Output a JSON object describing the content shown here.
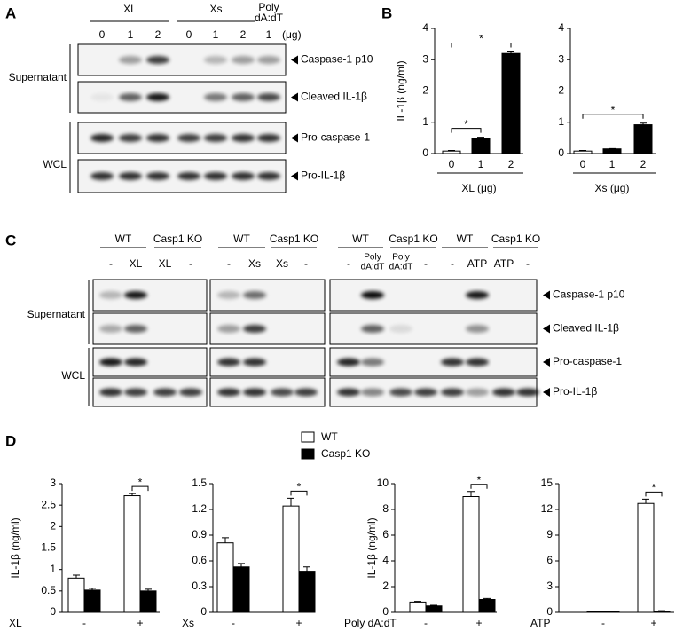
{
  "panel_a": {
    "letter": "A",
    "groups": [
      {
        "label": [
          "XL"
        ],
        "doses": [
          "0",
          "1",
          "2"
        ]
      },
      {
        "label": [
          "Xs"
        ],
        "doses": [
          "0",
          "1",
          "2"
        ]
      },
      {
        "label": [
          "Poly",
          "dA:dT"
        ],
        "doses": [
          "1"
        ]
      }
    ],
    "unit": "(μg)",
    "fractions": [
      {
        "label": "Supernatant",
        "bands": [
          "Caspase-1 p10",
          "Cleaved IL-1β"
        ]
      },
      {
        "label": "WCL",
        "bands": [
          "Pro-caspase-1",
          "Pro-IL-1β"
        ]
      }
    ]
  },
  "panel_b": {
    "letter": "B"
  },
  "panel_c": {
    "letter": "C",
    "blocks": [
      {
        "genotypes": [
          "WT",
          "Casp1 KO"
        ],
        "lanes": [
          [
            "-"
          ],
          [
            "XL"
          ],
          [
            "XL"
          ],
          [
            "-"
          ]
        ]
      },
      {
        "genotypes": [
          "WT",
          "Casp1 KO"
        ],
        "lanes": [
          [
            "-"
          ],
          [
            "Xs"
          ],
          [
            "Xs"
          ],
          [
            "-"
          ]
        ]
      },
      {
        "genotypes": [
          "WT",
          "Casp1 KO",
          "WT",
          "Casp1 KO"
        ],
        "lanes": [
          [
            "-"
          ],
          [
            "Poly",
            "dA:dT"
          ],
          [
            "Poly",
            "dA:dT"
          ],
          [
            "-"
          ],
          [
            "-"
          ],
          [
            "ATP"
          ],
          [
            "ATP"
          ],
          [
            "-"
          ]
        ]
      }
    ],
    "fractions": [
      {
        "label": "Supernatant",
        "bands": [
          "Caspase-1 p10",
          "Cleaved IL-1β"
        ]
      },
      {
        "label": "WCL",
        "bands": [
          "Pro-caspase-1",
          "Pro-IL-1β"
        ]
      }
    ]
  },
  "panel_d": {
    "letter": "D"
  },
  "chart_data": [
    {
      "type": "bar",
      "ylabel": "IL-1β (ng/ml)",
      "xlabel": "XL (μg)",
      "categories": [
        "0",
        "1",
        "2"
      ],
      "values": [
        0.08,
        0.47,
        3.2
      ],
      "errors": [
        0.02,
        0.05,
        0.05
      ],
      "colors": [
        "#ffffff",
        "#000000",
        "#000000"
      ],
      "ylim": [
        0,
        4
      ],
      "yticks": [
        0,
        1,
        2,
        3,
        4
      ],
      "annotations": [
        {
          "text": "*",
          "between": [
            "0",
            "1"
          ]
        },
        {
          "text": "*",
          "between": [
            "0",
            "2"
          ]
        }
      ]
    },
    {
      "type": "bar",
      "xlabel": "Xs (μg)",
      "categories": [
        "0",
        "1",
        "2"
      ],
      "values": [
        0.08,
        0.15,
        0.92
      ],
      "errors": [
        0.02,
        0.01,
        0.05
      ],
      "colors": [
        "#ffffff",
        "#000000",
        "#000000"
      ],
      "ylim": [
        0,
        4
      ],
      "yticks": [
        0,
        1,
        2,
        3,
        4
      ],
      "annotations": [
        {
          "text": "*",
          "between": [
            "0",
            "2"
          ]
        }
      ]
    },
    {
      "type": "grouped_bar",
      "ylabel": "IL-1β (ng/ml)",
      "xlabel": "XL",
      "categories": [
        "-",
        "+"
      ],
      "series": [
        {
          "name": "WT",
          "color": "#ffffff",
          "values": [
            0.8,
            2.72
          ],
          "errors": [
            0.07,
            0.05
          ]
        },
        {
          "name": "Casp1 KO",
          "color": "#000000",
          "values": [
            0.52,
            0.5
          ],
          "errors": [
            0.04,
            0.04
          ]
        }
      ],
      "ylim": [
        0,
        3
      ],
      "yticks": [
        0,
        0.5,
        1,
        1.5,
        2,
        2.5,
        3
      ],
      "annotations": [
        {
          "text": "*",
          "category": "+"
        }
      ]
    },
    {
      "type": "grouped_bar",
      "xlabel": "Xs",
      "categories": [
        "-",
        "+"
      ],
      "series": [
        {
          "color": "#ffffff",
          "values": [
            0.81,
            1.24
          ],
          "errors": [
            0.06,
            0.09
          ]
        },
        {
          "color": "#000000",
          "values": [
            0.53,
            0.48
          ],
          "errors": [
            0.04,
            0.05
          ]
        }
      ],
      "ylim": [
        0,
        1.5
      ],
      "yticks": [
        0,
        0.3,
        0.6,
        0.9,
        1.2,
        1.5
      ],
      "annotations": [
        {
          "text": "*",
          "category": "+"
        }
      ]
    },
    {
      "type": "grouped_bar",
      "ylabel": "IL-1β (ng/ml)",
      "xlabel": "Poly dA:dT",
      "categories": [
        "-",
        "+"
      ],
      "series": [
        {
          "color": "#ffffff",
          "values": [
            0.8,
            9.0
          ],
          "errors": [
            0.05,
            0.4
          ]
        },
        {
          "color": "#000000",
          "values": [
            0.5,
            1.0
          ],
          "errors": [
            0.05,
            0.08
          ]
        }
      ],
      "ylim": [
        0,
        10
      ],
      "yticks": [
        0,
        2,
        4,
        6,
        8,
        10
      ],
      "annotations": [
        {
          "text": "*",
          "category": "+"
        }
      ]
    },
    {
      "type": "grouped_bar",
      "xlabel": "ATP",
      "categories": [
        "-",
        "+"
      ],
      "series": [
        {
          "color": "#ffffff",
          "values": [
            0.1,
            12.7
          ],
          "errors": [
            0.05,
            0.5
          ]
        },
        {
          "color": "#000000",
          "values": [
            0.1,
            0.15
          ],
          "errors": [
            0.05,
            0.05
          ]
        }
      ],
      "ylim": [
        0,
        15
      ],
      "yticks": [
        0,
        3,
        6,
        9,
        12,
        15
      ],
      "annotations": [
        {
          "text": "*",
          "category": "+"
        }
      ]
    }
  ]
}
